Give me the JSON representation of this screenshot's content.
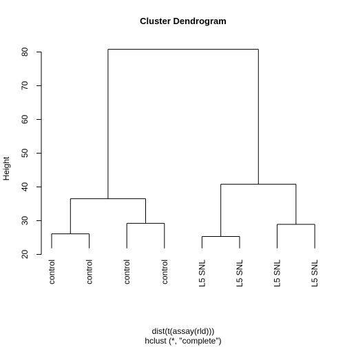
{
  "chart_data": {
    "type": "dendrogram",
    "title": "Cluster Dendrogram",
    "ylabel": "Height",
    "xlabel_lines": [
      "dist(t(assay(rld)))",
      "hclust (*, \"complete\")"
    ],
    "ylim": [
      20,
      83
    ],
    "yticks": [
      20,
      30,
      40,
      50,
      60,
      70,
      80
    ],
    "leaves": [
      "control",
      "control",
      "control",
      "control",
      "L5 SNL",
      "L5 SNL",
      "L5 SNL",
      "L5 SNL"
    ],
    "leaf_hang_bottom": 21.8,
    "merges": [
      {
        "left": "leaf0",
        "right": "leaf1",
        "height": 26.1
      },
      {
        "left": "leaf2",
        "right": "leaf3",
        "height": 29.2
      },
      {
        "left": "m0",
        "right": "m1",
        "height": 36.5
      },
      {
        "left": "leaf4",
        "right": "leaf5",
        "height": 25.3
      },
      {
        "left": "leaf6",
        "right": "leaf7",
        "height": 28.9
      },
      {
        "left": "m3",
        "right": "m4",
        "height": 40.8
      },
      {
        "left": "m2",
        "right": "m5",
        "height": 80.8
      }
    ]
  }
}
